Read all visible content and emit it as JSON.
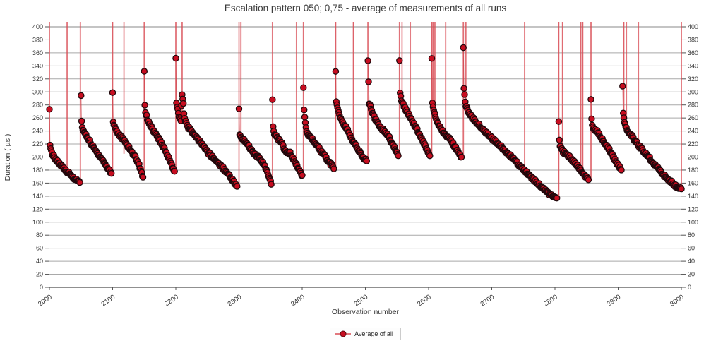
{
  "title": "Escalation pattern 050; 0,75 - average of measurements of all runs",
  "chart_data": {
    "type": "scatter",
    "title": "Escalation pattern 050; 0,75 - average of measurements of all runs",
    "xlabel": "Observation number",
    "ylabel": "Duration ( µs )",
    "xlim": [
      2000,
      3000
    ],
    "ylim": [
      0,
      400
    ],
    "grid": "horizontal",
    "legend_position": "bottom-center",
    "x_ticks": [
      2000,
      2100,
      2200,
      2300,
      2400,
      2500,
      2600,
      2700,
      2800,
      2900,
      3000
    ],
    "x_tick_rotation": -35,
    "y_ticks": [
      0,
      20,
      40,
      60,
      80,
      100,
      120,
      140,
      160,
      180,
      200,
      220,
      240,
      260,
      280,
      300,
      320,
      340,
      360,
      380,
      400
    ],
    "y_axis_mirrored_right": true,
    "series_name": "Average of all",
    "note": "Sawtooth escalation pattern: measurement spikes off-scale (>400) drawn as vertical lines at 'spikes' [observation, line_bottom_value]; dense dot trains decay between key points in 'trains'.",
    "spikes": [
      [
        2000,
        218
      ],
      [
        2028,
        172
      ],
      [
        2049,
        157
      ],
      [
        2100,
        170
      ],
      [
        2118,
        205
      ],
      [
        2150,
        165
      ],
      [
        2200,
        177
      ],
      [
        2210,
        255
      ],
      [
        2300,
        155
      ],
      [
        2303,
        228
      ],
      [
        2353,
        156
      ],
      [
        2391,
        188
      ],
      [
        2402,
        172
      ],
      [
        2453,
        181
      ],
      [
        2481,
        226
      ],
      [
        2504,
        194
      ],
      [
        2554,
        201
      ],
      [
        2558,
        288
      ],
      [
        2571,
        260
      ],
      [
        2605,
        201
      ],
      [
        2607,
        275
      ],
      [
        2610,
        258
      ],
      [
        2627,
        236
      ],
      [
        2655,
        199
      ],
      [
        2659,
        266
      ],
      [
        2752,
        170
      ],
      [
        2806,
        137
      ],
      [
        2812,
        208
      ],
      [
        2841,
        182
      ],
      [
        2844,
        179
      ],
      [
        2857,
        165
      ],
      [
        2909,
        256
      ],
      [
        2913,
        245
      ],
      [
        2932,
        219
      ],
      [
        3000,
        151
      ]
    ],
    "trains": [
      [
        [
          2000,
          273
        ],
        [
          2001,
          218
        ],
        [
          2002,
          211
        ],
        [
          2006,
          202
        ],
        [
          2012,
          194
        ],
        [
          2018,
          187
        ],
        [
          2024,
          181
        ],
        [
          2030,
          176
        ],
        [
          2036,
          170
        ],
        [
          2042,
          165
        ],
        [
          2048,
          161
        ]
      ],
      [
        [
          2050,
          294
        ],
        [
          2051,
          255
        ],
        [
          2052,
          245
        ],
        [
          2054,
          240
        ],
        [
          2058,
          233
        ],
        [
          2063,
          226
        ],
        [
          2068,
          217
        ],
        [
          2075,
          207
        ],
        [
          2082,
          199
        ],
        [
          2088,
          189
        ],
        [
          2093,
          182
        ],
        [
          2098,
          175
        ]
      ],
      [
        [
          2100,
          299
        ],
        [
          2101,
          254
        ],
        [
          2103,
          247
        ],
        [
          2107,
          239
        ],
        [
          2112,
          232
        ],
        [
          2118,
          226
        ],
        [
          2124,
          217
        ],
        [
          2130,
          208
        ],
        [
          2136,
          200
        ],
        [
          2141,
          190
        ],
        [
          2145,
          179
        ],
        [
          2148,
          169
        ]
      ],
      [
        [
          2150,
          332
        ],
        [
          2151,
          280
        ],
        [
          2152,
          269
        ],
        [
          2155,
          259
        ],
        [
          2159,
          250
        ],
        [
          2165,
          239
        ],
        [
          2173,
          228
        ],
        [
          2181,
          214
        ],
        [
          2188,
          200
        ],
        [
          2194,
          187
        ],
        [
          2198,
          178
        ]
      ],
      [
        [
          2200,
          352
        ],
        [
          2201,
          283
        ],
        [
          2204,
          266
        ],
        [
          2208,
          257
        ],
        [
          2210,
          297
        ],
        [
          2212,
          280
        ],
        [
          2214,
          258
        ],
        [
          2218,
          248
        ],
        [
          2226,
          238
        ],
        [
          2234,
          228
        ],
        [
          2242,
          219
        ],
        [
          2250,
          208
        ],
        [
          2258,
          200
        ],
        [
          2266,
          192
        ],
        [
          2274,
          184
        ],
        [
          2282,
          175
        ],
        [
          2289,
          166
        ],
        [
          2295,
          157
        ],
        [
          2297,
          155
        ]
      ],
      [
        [
          2300,
          274
        ],
        [
          2301,
          234
        ],
        [
          2306,
          227
        ],
        [
          2313,
          221
        ],
        [
          2320,
          210
        ],
        [
          2327,
          203
        ],
        [
          2334,
          196
        ],
        [
          2340,
          188
        ],
        [
          2344,
          178
        ],
        [
          2348,
          167
        ],
        [
          2351,
          158
        ]
      ],
      [
        [
          2353,
          288
        ],
        [
          2354,
          247
        ],
        [
          2356,
          236
        ],
        [
          2362,
          228
        ],
        [
          2368,
          220
        ],
        [
          2372,
          212
        ],
        [
          2376,
          206
        ],
        [
          2381,
          207
        ],
        [
          2386,
          196
        ],
        [
          2391,
          188
        ],
        [
          2395,
          181
        ],
        [
          2400,
          172
        ]
      ],
      [
        [
          2402,
          307
        ],
        [
          2403,
          273
        ],
        [
          2404,
          262
        ],
        [
          2407,
          240
        ],
        [
          2411,
          232
        ],
        [
          2417,
          226
        ],
        [
          2423,
          218
        ],
        [
          2429,
          210
        ],
        [
          2435,
          202
        ],
        [
          2441,
          194
        ],
        [
          2446,
          188
        ],
        [
          2450,
          182
        ]
      ],
      [
        [
          2453,
          332
        ],
        [
          2454,
          285
        ],
        [
          2457,
          270
        ],
        [
          2460,
          262
        ],
        [
          2465,
          251
        ],
        [
          2472,
          241
        ],
        [
          2478,
          229
        ],
        [
          2485,
          218
        ],
        [
          2490,
          209
        ],
        [
          2495,
          201
        ],
        [
          2502,
          194
        ]
      ],
      [
        [
          2504,
          348
        ],
        [
          2506,
          283
        ],
        [
          2509,
          273
        ],
        [
          2513,
          264
        ],
        [
          2519,
          252
        ],
        [
          2525,
          245
        ],
        [
          2531,
          238
        ],
        [
          2537,
          231
        ],
        [
          2542,
          222
        ],
        [
          2547,
          212
        ],
        [
          2552,
          202
        ]
      ],
      [
        [
          2554,
          348
        ],
        [
          2555,
          299
        ],
        [
          2557,
          288
        ],
        [
          2560,
          281
        ],
        [
          2565,
          271
        ],
        [
          2571,
          261
        ],
        [
          2576,
          252
        ],
        [
          2581,
          243
        ],
        [
          2586,
          234
        ],
        [
          2591,
          225
        ],
        [
          2596,
          214
        ],
        [
          2602,
          202
        ]
      ],
      [
        [
          2605,
          352
        ],
        [
          2606,
          283
        ],
        [
          2608,
          271
        ],
        [
          2612,
          259
        ],
        [
          2617,
          248
        ],
        [
          2622,
          240
        ],
        [
          2628,
          233
        ],
        [
          2634,
          227
        ],
        [
          2640,
          218
        ],
        [
          2646,
          209
        ],
        [
          2652,
          200
        ]
      ],
      [
        [
          2655,
          368
        ],
        [
          2656,
          305
        ],
        [
          2658,
          283
        ],
        [
          2662,
          271
        ],
        [
          2668,
          262
        ],
        [
          2676,
          253
        ],
        [
          2684,
          245
        ],
        [
          2692,
          237
        ],
        [
          2700,
          229
        ],
        [
          2710,
          220
        ],
        [
          2720,
          211
        ],
        [
          2730,
          201
        ],
        [
          2740,
          191
        ],
        [
          2750,
          181
        ],
        [
          2760,
          171
        ],
        [
          2770,
          162
        ],
        [
          2780,
          153
        ],
        [
          2788,
          146
        ],
        [
          2795,
          140
        ],
        [
          2800,
          137
        ],
        [
          2803,
          137
        ]
      ],
      [
        [
          2806,
          254
        ],
        [
          2807,
          226
        ],
        [
          2808,
          218
        ],
        [
          2812,
          209
        ],
        [
          2818,
          204
        ],
        [
          2824,
          199
        ],
        [
          2830,
          193
        ],
        [
          2836,
          186
        ],
        [
          2841,
          180
        ],
        [
          2846,
          173
        ],
        [
          2853,
          165
        ]
      ],
      [
        [
          2857,
          288
        ],
        [
          2858,
          259
        ],
        [
          2859,
          248
        ],
        [
          2862,
          243
        ],
        [
          2868,
          238
        ],
        [
          2874,
          229
        ],
        [
          2880,
          220
        ],
        [
          2886,
          211
        ],
        [
          2892,
          201
        ],
        [
          2898,
          190
        ],
        [
          2905,
          180
        ]
      ],
      [
        [
          2907,
          309
        ],
        [
          2908,
          267
        ],
        [
          2909,
          259
        ],
        [
          2912,
          246
        ],
        [
          2918,
          237
        ],
        [
          2926,
          226
        ],
        [
          2932,
          218
        ],
        [
          2940,
          209
        ],
        [
          2948,
          200
        ],
        [
          2956,
          191
        ],
        [
          2964,
          181
        ],
        [
          2972,
          172
        ],
        [
          2980,
          165
        ],
        [
          2988,
          158
        ],
        [
          2995,
          153
        ],
        [
          3000,
          151
        ]
      ]
    ],
    "style": {
      "point_fill": "#c70d20",
      "point_stroke": "#20090c",
      "spike_line": "#d94d55",
      "connector_line": "#c82d37",
      "grid_color": "#a9a9a9",
      "axis_color": "#222222",
      "top_line_color": "#888888",
      "tick_text_color": "#333333",
      "legend_border": "#cccccc"
    }
  },
  "legend": {
    "items": [
      {
        "label": "Average of all"
      }
    ]
  }
}
